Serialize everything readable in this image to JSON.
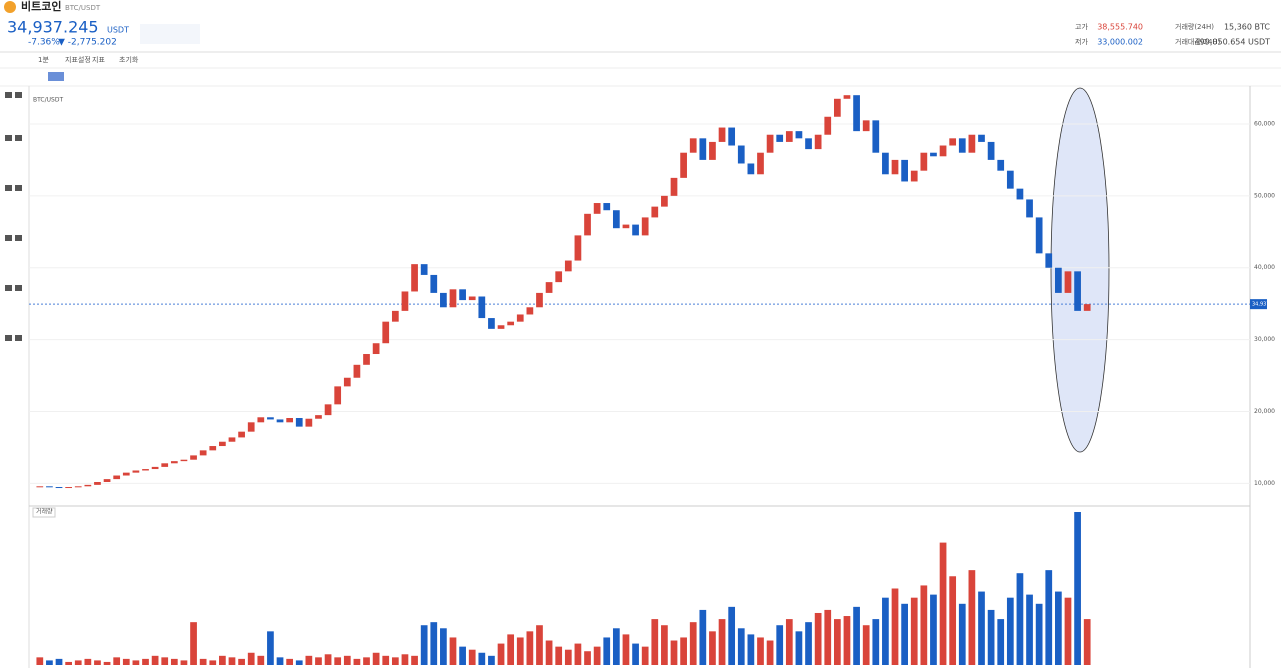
{
  "header": {
    "name": "비트코인",
    "pair": "BTC/USDT",
    "price": "34,937.245",
    "price_unit": "USDT",
    "change_pct": "-7.36%",
    "change_abs": "▼ -2,775.202",
    "stats": [
      {
        "label": "고가",
        "value": "38,555.740"
      },
      {
        "label": "저가",
        "value": "33,000.002"
      },
      {
        "label": "거래량(24H)",
        "value": "15,360 BTC"
      },
      {
        "label": "거래대금(24H)",
        "value": "499,050.654 USDT"
      }
    ]
  },
  "toolbar": [
    "1분",
    "지표설정",
    "지표",
    "초기화"
  ],
  "chart_label": "BTC/USDT",
  "volume_label": "거래량",
  "chart_data": {
    "type": "candlestick",
    "up_color": "#d9443a",
    "down_color": "#1a5fc4",
    "closes": [
      9600,
      9500,
      9400,
      9500,
      9600,
      9800,
      10200,
      10600,
      11100,
      11500,
      11800,
      12000,
      12300,
      12800,
      13100,
      13300,
      13900,
      14600,
      15200,
      15800,
      16400,
      17200,
      18500,
      19200,
      18900,
      18500,
      19100,
      17900,
      19000,
      19500,
      21000,
      23500,
      24700,
      26500,
      28000,
      29500,
      32500,
      34000,
      36700,
      40500,
      39000,
      36500,
      34500,
      37000,
      35500,
      36000,
      33000,
      31500,
      32000,
      32500,
      33500,
      34500,
      36500,
      38000,
      39500,
      41000,
      44500,
      47500,
      49000,
      48000,
      45500,
      46000,
      44500,
      47000,
      48500,
      50000,
      52500,
      56000,
      58000,
      55000,
      57500,
      59500,
      57000,
      54500,
      53000,
      56000,
      58500,
      57500,
      59000,
      58000,
      56500,
      58500,
      61000,
      63500,
      64000,
      59000,
      60500,
      56000,
      53000,
      55000,
      52000,
      53500,
      56000,
      55500,
      57000,
      58000,
      56000,
      58500,
      57500,
      55000,
      53500,
      51000,
      49500,
      47000,
      42000,
      40000,
      36500,
      39500,
      34000,
      34937
    ],
    "volumes": [
      5,
      3,
      4,
      2,
      3,
      4,
      3,
      2,
      5,
      4,
      3,
      4,
      6,
      5,
      4,
      3,
      28,
      4,
      3,
      6,
      5,
      4,
      8,
      6,
      22,
      5,
      4,
      3,
      6,
      5,
      7,
      5,
      6,
      4,
      5,
      8,
      6,
      5,
      7,
      6,
      26,
      28,
      24,
      18,
      12,
      10,
      8,
      6,
      14,
      20,
      18,
      22,
      26,
      16,
      12,
      10,
      14,
      9,
      12,
      18,
      24,
      20,
      14,
      12,
      30,
      26,
      16,
      18,
      28,
      36,
      22,
      30,
      38,
      24,
      20,
      18,
      16,
      26,
      30,
      22,
      28,
      34,
      36,
      30,
      32,
      38,
      26,
      30,
      44,
      50,
      40,
      44,
      52,
      46,
      80,
      58,
      40,
      62,
      48,
      36,
      30,
      44,
      60,
      46,
      40,
      62,
      48,
      44,
      100,
      30
    ],
    "vlim": [
      0,
      100
    ],
    "ylim": [
      7000,
      65000
    ],
    "yticks": [
      {
        "value": 10000,
        "label": "10,000"
      },
      {
        "value": 20000,
        "label": "20,000"
      },
      {
        "value": 30000,
        "label": "30,000"
      },
      {
        "value": 40000,
        "label": "40,000"
      },
      {
        "value": 50000,
        "label": "50,000"
      },
      {
        "value": 60000,
        "label": "60,000"
      }
    ],
    "last_price": 34937,
    "last_label": "34,937"
  }
}
